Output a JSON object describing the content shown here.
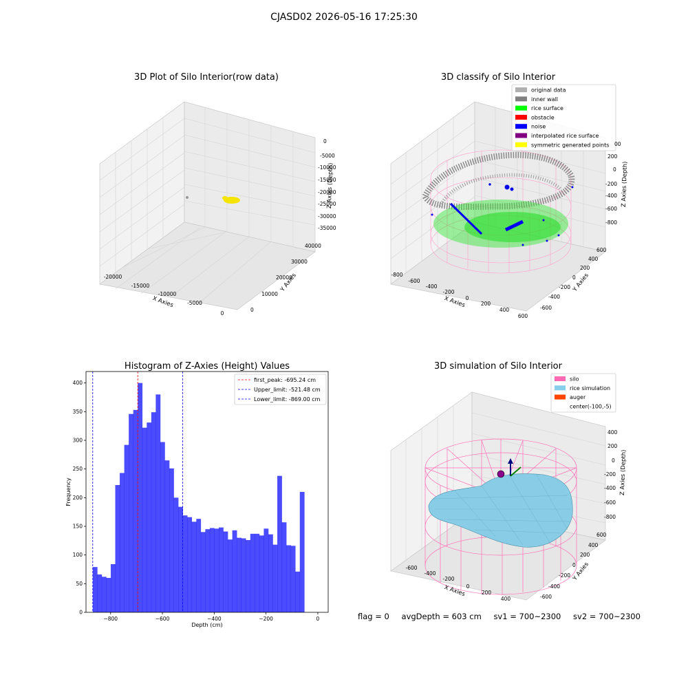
{
  "suptitle": "CJASD02 2026-05-16 17:25:30",
  "panels": {
    "raw": {
      "title": "3D Plot of Silo Interior(row data)",
      "xlabel": "X Axies",
      "ylabel": "Y Axies",
      "zlabel": "Z Axies (Depth)",
      "xticks": [
        "-20000",
        "-15000",
        "-10000",
        "-5000",
        "0"
      ],
      "yticks": [
        "0",
        "10000",
        "20000",
        "30000",
        "40000"
      ],
      "zticks": [
        "0",
        "-5000",
        "-10000",
        "-15000",
        "-20000",
        "-25000",
        "-30000",
        "-35000"
      ]
    },
    "classify": {
      "title": "3D classify of Silo Interior",
      "xlabel": "X Axies",
      "ylabel": "Y Axies",
      "zlabel": "Z Axies (Depth)",
      "xticks": [
        "-800",
        "-600",
        "-400",
        "-200",
        "0",
        "200",
        "400",
        "600"
      ],
      "yticks": [
        "600",
        "400",
        "200",
        "0",
        "-200",
        "-400",
        "-600"
      ],
      "zticks": [
        "200",
        "0",
        "-200",
        "-400",
        "-600",
        "-800"
      ],
      "ztick_partial": "00",
      "legend": [
        {
          "label": "original data",
          "color": "#b0b0b0"
        },
        {
          "label": "inner wall",
          "color": "#808080"
        },
        {
          "label": "rice surface",
          "color": "#00ff00"
        },
        {
          "label": "obstacle",
          "color": "#ff0000"
        },
        {
          "label": "noise",
          "color": "#0000ff"
        },
        {
          "label": "interpolated rice surface",
          "color": "#800080"
        },
        {
          "label": "symmetric generated points",
          "color": "#ffff00"
        }
      ]
    },
    "simulation": {
      "title": "3D simulation of Silo Interior",
      "xlabel": "X Axies",
      "ylabel": "Y Axies",
      "zlabel": "Z Axies (Depth)",
      "xticks": [
        "-600",
        "-400",
        "-200",
        "0",
        "200",
        "400"
      ],
      "yticks": [
        "600",
        "400",
        "200",
        "0",
        "-200",
        "-400",
        "-600"
      ],
      "zticks": [
        "400",
        "200",
        "0",
        "-200",
        "-400",
        "-600",
        "-800"
      ],
      "legend": [
        {
          "label": "silo",
          "color": "#ff69b4"
        },
        {
          "label": "rice simulation",
          "color": "#87ceeb"
        },
        {
          "label": "auger",
          "color": "#ff4500"
        },
        {
          "label": "center(-100,-5)",
          "color": "none"
        }
      ]
    }
  },
  "status": {
    "flag": "flag = 0",
    "avg_depth": "avgDepth = 603 cm",
    "sv1": "sv1 = 700~2300",
    "sv2": "sv2 = 700~2300"
  },
  "chart_data": [
    {
      "type": "histogram",
      "title": "Histogram of Z-Axies (Height) Values",
      "xlabel": "Depth (cm)",
      "ylabel": "Frequency",
      "xlim": [
        -895,
        40
      ],
      "ylim": [
        0,
        420
      ],
      "xticks": [
        -800,
        -600,
        -400,
        -200,
        0
      ],
      "yticks": [
        0,
        50,
        100,
        150,
        200,
        250,
        300,
        350,
        400
      ],
      "bin_start": -869,
      "bin_width": 17.38,
      "color": "#0000ff",
      "values": [
        79,
        66,
        62,
        60,
        84,
        222,
        243,
        292,
        346,
        353,
        400,
        322,
        331,
        349,
        380,
        297,
        265,
        251,
        200,
        184,
        169,
        166,
        158,
        163,
        140,
        145,
        147,
        146,
        148,
        141,
        127,
        143,
        130,
        129,
        126,
        137,
        137,
        134,
        146,
        136,
        118,
        238,
        157,
        117,
        116,
        71,
        210
      ],
      "reference_lines": [
        {
          "label": "first_peak: -695.24 cm",
          "x": -695.24,
          "color": "#ff0000"
        },
        {
          "label": "Upper_limit: -521.48 cm",
          "x": -521.48,
          "color": "#0000ff"
        },
        {
          "label": "Lower_limit: -869.00 cm",
          "x": -869.0,
          "color": "#0000ff"
        }
      ],
      "legend_position": "upper right"
    }
  ]
}
